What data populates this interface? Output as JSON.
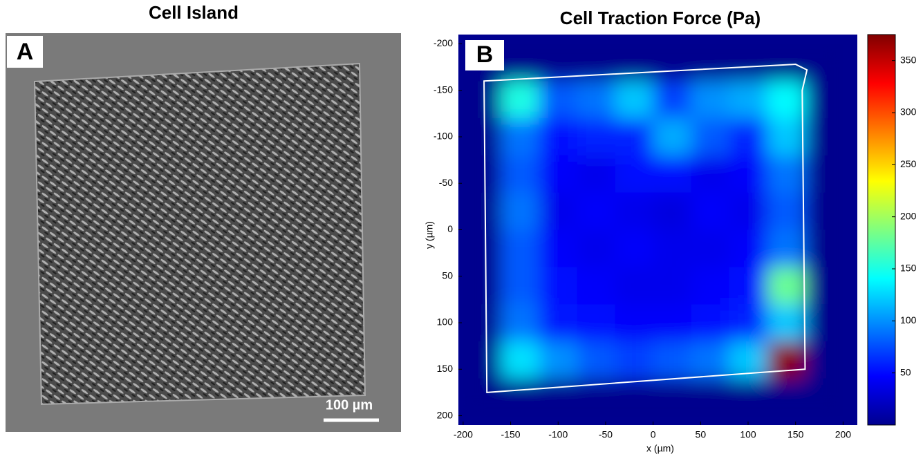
{
  "panel_a": {
    "label": "A",
    "title": "Cell Island",
    "scale_bar": "100 µm"
  },
  "chart_data": {
    "type": "heatmap",
    "label": "B",
    "title": "Cell Traction Force (Pa)",
    "xlabel": "x (µm)",
    "ylabel": "y (µm)",
    "colormap": "jet",
    "xlim": [
      -205,
      215
    ],
    "ylim": [
      -210,
      210
    ],
    "xticks": [
      -200,
      -150,
      -100,
      -50,
      0,
      50,
      100,
      150,
      200
    ],
    "yticks": [
      -200,
      -150,
      -100,
      -50,
      0,
      50,
      100,
      150,
      200
    ],
    "x": [
      -180,
      -140,
      -100,
      -60,
      -20,
      20,
      60,
      100,
      140,
      180
    ],
    "y": [
      -180,
      -140,
      -100,
      -60,
      -20,
      20,
      60,
      100,
      140,
      180
    ],
    "values": [
      [
        5,
        5,
        5,
        5,
        5,
        5,
        5,
        5,
        5,
        5
      ],
      [
        5,
        150,
        80,
        90,
        120,
        70,
        100,
        110,
        140,
        5
      ],
      [
        5,
        90,
        50,
        60,
        60,
        110,
        80,
        60,
        120,
        5
      ],
      [
        5,
        80,
        45,
        40,
        50,
        50,
        40,
        45,
        90,
        5
      ],
      [
        5,
        90,
        40,
        45,
        40,
        35,
        45,
        40,
        80,
        5
      ],
      [
        5,
        80,
        45,
        40,
        45,
        40,
        40,
        45,
        90,
        5
      ],
      [
        5,
        80,
        50,
        45,
        40,
        40,
        45,
        50,
        180,
        5
      ],
      [
        5,
        90,
        55,
        50,
        45,
        45,
        50,
        60,
        120,
        5
      ],
      [
        5,
        130,
        100,
        80,
        70,
        80,
        90,
        120,
        370,
        5
      ],
      [
        5,
        5,
        5,
        5,
        5,
        5,
        5,
        5,
        5,
        5
      ]
    ],
    "clim": [
      0,
      375
    ],
    "cticks": [
      50,
      100,
      150,
      200,
      250,
      300,
      350
    ],
    "outline_x": [
      -178,
      150,
      162,
      157,
      160,
      -175
    ],
    "outline_y": [
      -160,
      -178,
      -172,
      -150,
      150,
      175
    ],
    "outline_color": "#ffffff"
  }
}
